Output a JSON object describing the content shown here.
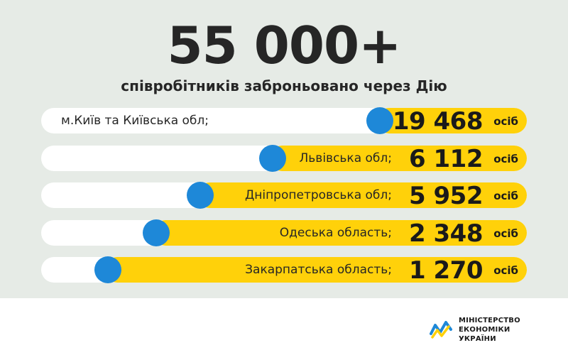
{
  "headline": "55 000+",
  "subtitle": "співробітників заброньовано через Дію",
  "colors": {
    "background": "#e6ebe6",
    "bar": "#ffd10a",
    "dot": "#1e88d8",
    "track": "#ffffff"
  },
  "chart_data": {
    "type": "bar",
    "orientation": "horizontal",
    "categories": [
      "м.Київ та Київська обл;",
      "Львівська обл;",
      "Дніпропетровська обл;",
      "Одеська область;",
      "Закарпатська область;"
    ],
    "values": [
      19468,
      6112,
      5952,
      2348,
      1270
    ],
    "value_labels": [
      "19 468",
      "6 112",
      "5 952",
      "2 348",
      "1 270"
    ],
    "unit": "осіб",
    "display_fraction": [
      0.31,
      0.53,
      0.68,
      0.77,
      0.87
    ]
  },
  "logo": {
    "name": "mineconomy-logo-icon",
    "lines": [
      "МІНІСТЕРСТВО",
      "ЕКОНОМІКИ",
      "УКРАЇНИ"
    ]
  }
}
